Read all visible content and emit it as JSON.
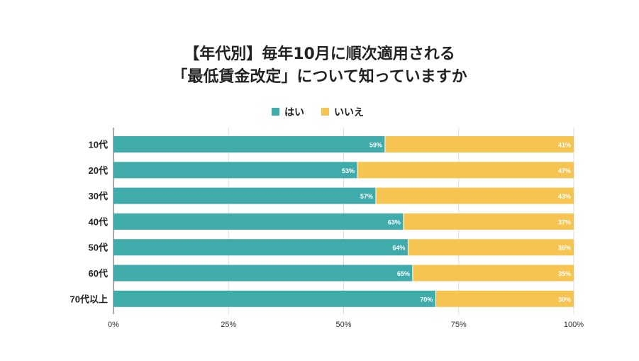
{
  "chart_data": {
    "type": "bar",
    "stacked": true,
    "orientation": "horizontal",
    "title": [
      "【年代別】毎年10月に順次適用される",
      "「最低賃金改定」について知っていますか"
    ],
    "categories": [
      "10代",
      "20代",
      "30代",
      "40代",
      "50代",
      "60代",
      "70代以上"
    ],
    "series": [
      {
        "name": "はい",
        "color": "#40ABAB",
        "values": [
          59,
          53,
          57,
          63,
          64,
          65,
          70
        ]
      },
      {
        "name": "いいえ",
        "color": "#F5C451",
        "values": [
          41,
          47,
          43,
          37,
          36,
          35,
          30
        ]
      }
    ],
    "xlim": [
      0,
      100
    ],
    "xticks": [
      0,
      25,
      50,
      75,
      100
    ],
    "xtick_labels": [
      "0%",
      "25%",
      "50%",
      "75%",
      "100%"
    ],
    "grid": true,
    "legend": "top-center",
    "xlabel": "",
    "ylabel": ""
  }
}
